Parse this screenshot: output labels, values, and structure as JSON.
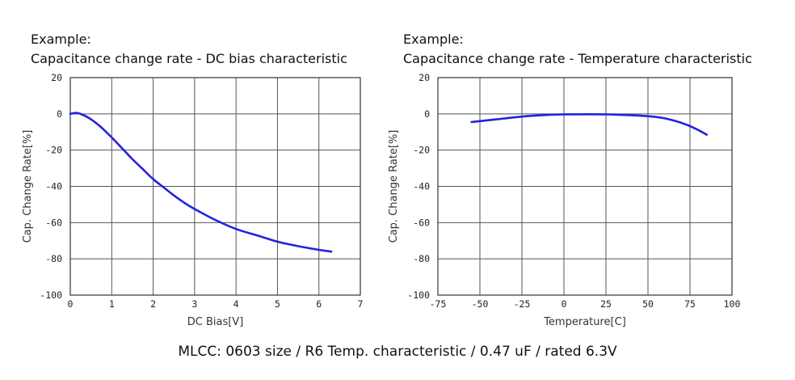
{
  "chart_data": [
    {
      "type": "line",
      "title_line1": "Example:",
      "title_line2": "Capacitance change rate - DC bias characteristic",
      "xlabel": "DC Bias[V]",
      "ylabel": "Cap. Change Rate[%]",
      "xlim": [
        0,
        7
      ],
      "ylim": [
        -100,
        20
      ],
      "xticks": [
        "0",
        "1",
        "2",
        "3",
        "4",
        "5",
        "6",
        "7"
      ],
      "yticks": [
        "20",
        "0",
        "-20",
        "-40",
        "-60",
        "-80",
        "-100"
      ],
      "grid": true,
      "color": "#2222dd",
      "series": [
        {
          "x": [
            0,
            0.15,
            0.3,
            0.5,
            0.75,
            1.0,
            1.25,
            1.5,
            1.75,
            2.0,
            2.25,
            2.5,
            2.75,
            3.0,
            3.5,
            4.0,
            4.5,
            5.0,
            5.5,
            6.0,
            6.3
          ],
          "y": [
            0,
            0.5,
            -0.5,
            -3,
            -7.5,
            -13,
            -19,
            -25,
            -30.5,
            -36,
            -40.5,
            -45,
            -49,
            -52.5,
            -58.5,
            -63.5,
            -67,
            -70.5,
            -73,
            -75,
            -76
          ]
        }
      ]
    },
    {
      "type": "line",
      "title_line1": "Example:",
      "title_line2": "Capacitance change rate - Temperature characteristic",
      "xlabel": "Temperature[C]",
      "ylabel": "Cap. Change Rate[%]",
      "xlim": [
        -75,
        100
      ],
      "ylim": [
        -100,
        20
      ],
      "xticks": [
        "-75",
        "-50",
        "-25",
        "0",
        "25",
        "50",
        "75",
        "100"
      ],
      "yticks": [
        "20",
        "0",
        "-20",
        "-40",
        "-60",
        "-80",
        "-100"
      ],
      "grid": true,
      "color": "#2222dd",
      "series": [
        {
          "x": [
            -55,
            -40,
            -25,
            -10,
            0,
            25,
            50,
            60,
            70,
            78,
            85
          ],
          "y": [
            -4.5,
            -3,
            -1.5,
            -0.6,
            -0.3,
            -0.3,
            -1.3,
            -2.5,
            -5,
            -8,
            -11.5
          ]
        }
      ]
    }
  ],
  "caption": "MLCC: 0603 size / R6 Temp. characteristic / 0.47 uF / rated 6.3V"
}
